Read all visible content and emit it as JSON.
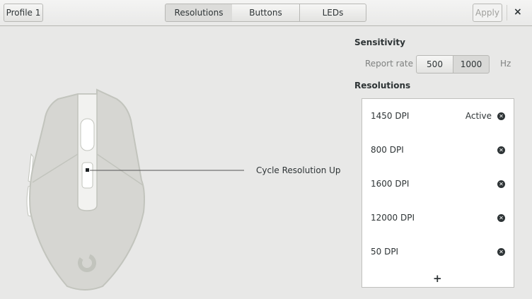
{
  "header": {
    "profile": "Profile 1",
    "tabs": [
      {
        "label": "Resolutions",
        "active": true
      },
      {
        "label": "Buttons",
        "active": false
      },
      {
        "label": "LEDs",
        "active": false
      }
    ],
    "apply": "Apply",
    "close": "×"
  },
  "mouse": {
    "callout": "Cycle Resolution Up"
  },
  "sensitivity": {
    "title": "Sensitivity",
    "report_rate_label": "Report rate",
    "rates": [
      {
        "label": "500",
        "selected": false
      },
      {
        "label": "1000",
        "selected": true
      }
    ],
    "unit": "Hz"
  },
  "resolutions": {
    "title": "Resolutions",
    "items": [
      {
        "label": "1450 DPI",
        "status": "Active"
      },
      {
        "label": "800 DPI"
      },
      {
        "label": "1600 DPI"
      },
      {
        "label": "12000 DPI"
      },
      {
        "label": "50 DPI"
      }
    ],
    "add": "+"
  },
  "colors": {
    "mouse_body": "#d6d6d2",
    "mouse_outline": "#c2c4bd"
  }
}
